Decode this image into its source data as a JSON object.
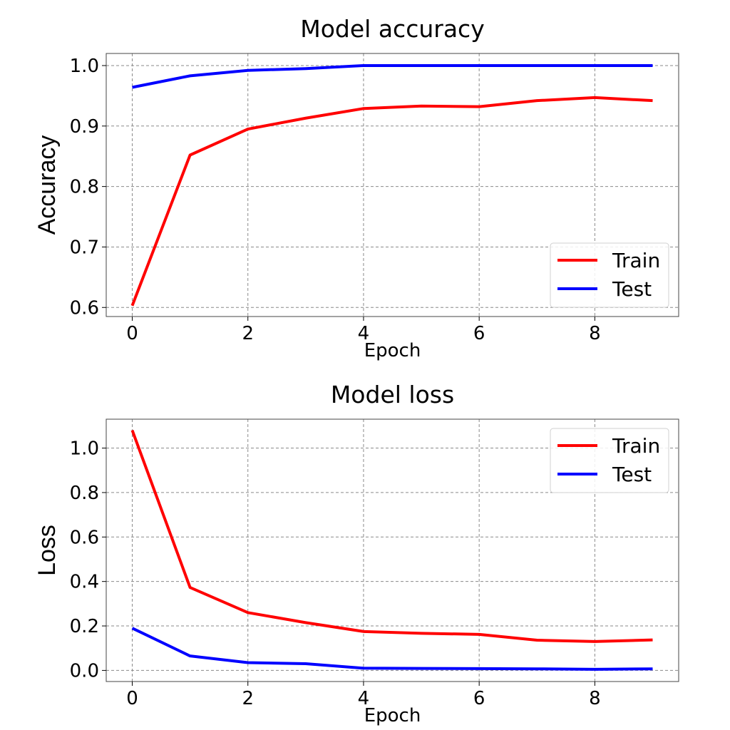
{
  "chart_data": [
    {
      "type": "line",
      "title": "Model accuracy",
      "xlabel": "Epoch",
      "ylabel": "Accuracy",
      "x": [
        0,
        1,
        2,
        3,
        4,
        5,
        6,
        7,
        8,
        9
      ],
      "xlim": [
        -0.45,
        9.45
      ],
      "ylim": [
        0.585,
        1.02
      ],
      "xticks": [
        0,
        2,
        4,
        6,
        8
      ],
      "yticks": [
        0.6,
        0.7,
        0.8,
        0.9,
        1.0
      ],
      "ytick_format": 1,
      "grid": true,
      "legend_position": "lower-right",
      "series": [
        {
          "name": "Train",
          "color": "#ff0000",
          "values": [
            0.603,
            0.852,
            0.895,
            0.913,
            0.929,
            0.933,
            0.932,
            0.942,
            0.947,
            0.942
          ]
        },
        {
          "name": "Test",
          "color": "#0000ff",
          "values": [
            0.964,
            0.983,
            0.992,
            0.995,
            1.0,
            1.0,
            1.0,
            1.0,
            1.0,
            1.0
          ]
        }
      ]
    },
    {
      "type": "line",
      "title": "Model loss",
      "xlabel": "Epoch",
      "ylabel": "Loss",
      "x": [
        0,
        1,
        2,
        3,
        4,
        5,
        6,
        7,
        8,
        9
      ],
      "xlim": [
        -0.45,
        9.45
      ],
      "ylim": [
        -0.05,
        1.13
      ],
      "xticks": [
        0,
        2,
        4,
        6,
        8
      ],
      "yticks": [
        0.0,
        0.2,
        0.4,
        0.6,
        0.8,
        1.0
      ],
      "ytick_format": 1,
      "grid": true,
      "legend_position": "upper-right",
      "series": [
        {
          "name": "Train",
          "color": "#ff0000",
          "values": [
            1.08,
            0.373,
            0.26,
            0.215,
            0.175,
            0.167,
            0.162,
            0.136,
            0.13,
            0.137
          ]
        },
        {
          "name": "Test",
          "color": "#0000ff",
          "values": [
            0.19,
            0.065,
            0.035,
            0.03,
            0.01,
            0.009,
            0.008,
            0.007,
            0.005,
            0.007
          ]
        }
      ]
    }
  ]
}
